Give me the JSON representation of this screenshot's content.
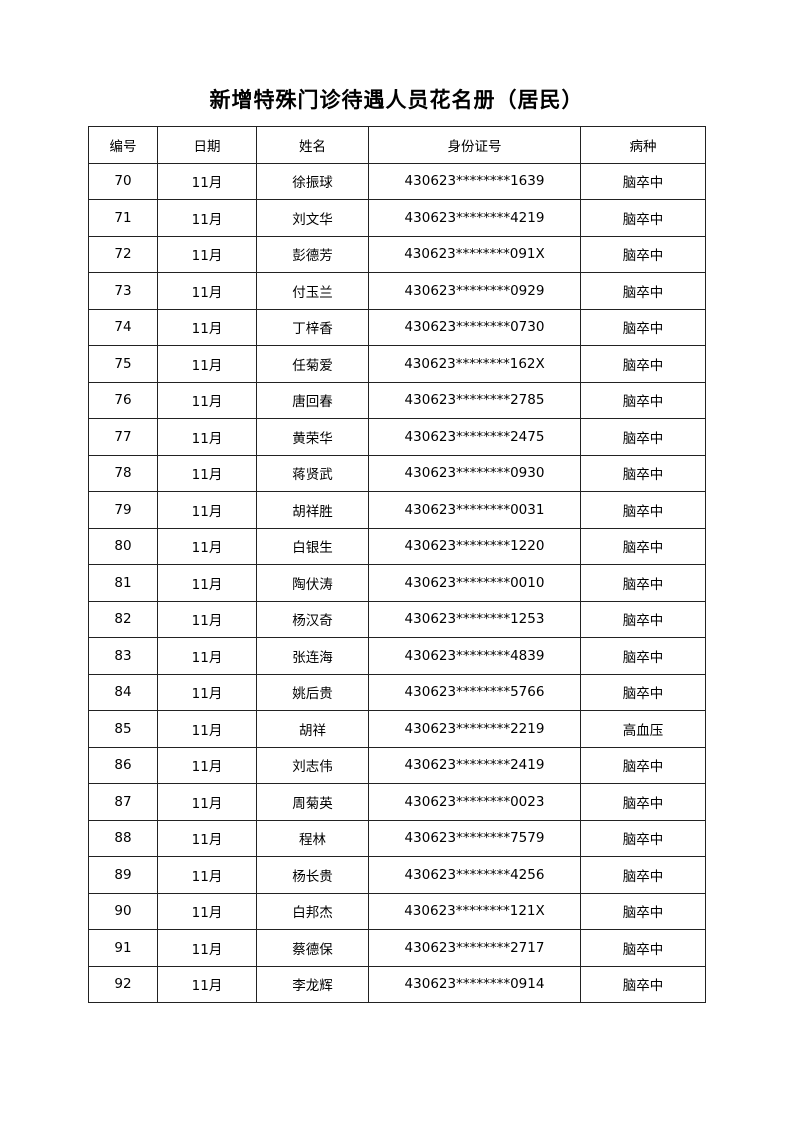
{
  "title": "新增特殊门诊待遇人员花名册（居民）",
  "table": {
    "headers": [
      "编号",
      "日期",
      "姓名",
      "身份证号",
      "病种"
    ],
    "rows": [
      [
        "70",
        "11月",
        "徐振球",
        "430623********1639",
        "脑卒中"
      ],
      [
        "71",
        "11月",
        "刘文华",
        "430623********4219",
        "脑卒中"
      ],
      [
        "72",
        "11月",
        "彭德芳",
        "430623********091X",
        "脑卒中"
      ],
      [
        "73",
        "11月",
        "付玉兰",
        "430623********0929",
        "脑卒中"
      ],
      [
        "74",
        "11月",
        "丁梓香",
        "430623********0730",
        "脑卒中"
      ],
      [
        "75",
        "11月",
        "任菊爱",
        "430623********162X",
        "脑卒中"
      ],
      [
        "76",
        "11月",
        "唐回春",
        "430623********2785",
        "脑卒中"
      ],
      [
        "77",
        "11月",
        "黄荣华",
        "430623********2475",
        "脑卒中"
      ],
      [
        "78",
        "11月",
        "蒋贤武",
        "430623********0930",
        "脑卒中"
      ],
      [
        "79",
        "11月",
        "胡祥胜",
        "430623********0031",
        "脑卒中"
      ],
      [
        "80",
        "11月",
        "白银生",
        "430623********1220",
        "脑卒中"
      ],
      [
        "81",
        "11月",
        "陶伏涛",
        "430623********0010",
        "脑卒中"
      ],
      [
        "82",
        "11月",
        "杨汉奇",
        "430623********1253",
        "脑卒中"
      ],
      [
        "83",
        "11月",
        "张连海",
        "430623********4839",
        "脑卒中"
      ],
      [
        "84",
        "11月",
        "姚后贵",
        "430623********5766",
        "脑卒中"
      ],
      [
        "85",
        "11月",
        "胡祥",
        "430623********2219",
        "高血压"
      ],
      [
        "86",
        "11月",
        "刘志伟",
        "430623********2419",
        "脑卒中"
      ],
      [
        "87",
        "11月",
        "周菊英",
        "430623********0023",
        "脑卒中"
      ],
      [
        "88",
        "11月",
        "程林",
        "430623********7579",
        "脑卒中"
      ],
      [
        "89",
        "11月",
        "杨长贵",
        "430623********4256",
        "脑卒中"
      ],
      [
        "90",
        "11月",
        "白邦杰",
        "430623********121X",
        "脑卒中"
      ],
      [
        "91",
        "11月",
        "蔡德保",
        "430623********2717",
        "脑卒中"
      ],
      [
        "92",
        "11月",
        "李龙辉",
        "430623********0914",
        "脑卒中"
      ]
    ]
  }
}
